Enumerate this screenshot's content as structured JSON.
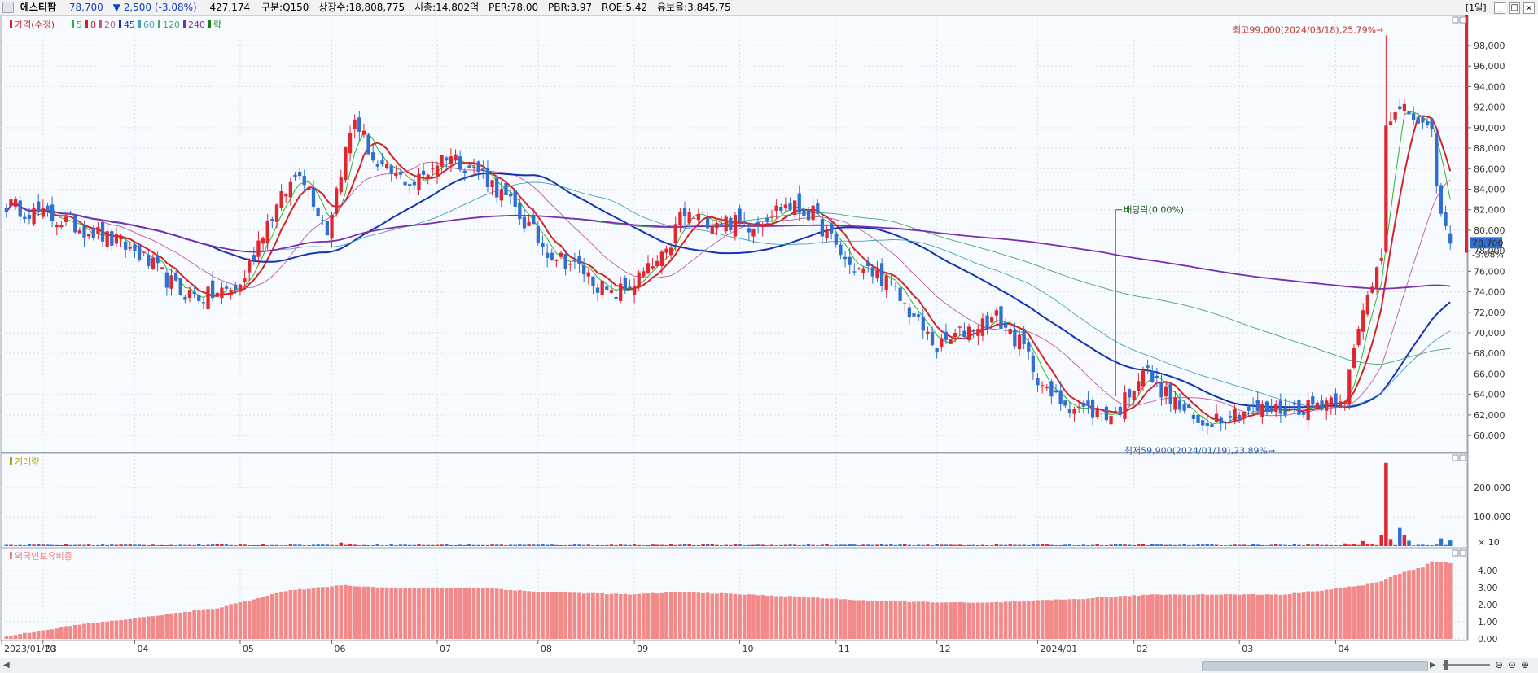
{
  "header": {
    "stock_name": "에스티팜",
    "price": "78,700",
    "change": "▼ 2,500 (-3.08%)",
    "volume": "427,174",
    "market": "구분:Q150",
    "shares": "상장수:18,808,775",
    "market_cap": "시총:14,802억",
    "per": "PER:78.00",
    "pbr": "PBR:3.97",
    "roe": "ROE:5.42",
    "float_ratio": "유보율:3,845.75",
    "period_button": "[1일]",
    "btn_min": "_",
    "btn_max": "□",
    "btn_close": "×"
  },
  "price_legend": [
    {
      "label": "가격(수정)",
      "color": "#d32424"
    },
    {
      "label": "5",
      "color": "#2db42d"
    },
    {
      "label": "8",
      "color": "#d32424"
    },
    {
      "label": "20",
      "color": "#c0579d"
    },
    {
      "label": "45",
      "color": "#1532b0"
    },
    {
      "label": "60",
      "color": "#4aa0b8"
    },
    {
      "label": "120",
      "color": "#4aa46a"
    },
    {
      "label": "240",
      "color": "#7a2fb0"
    },
    {
      "label": "락",
      "color": "#1e7a1e"
    }
  ],
  "volume_legend": {
    "label": "거래량",
    "color": "#a8a800"
  },
  "foreign_legend": {
    "label": "외국인보유비중",
    "color": "#f08080"
  },
  "annotations": {
    "high": "최고99,000(2024/03/18),25.79%→",
    "low": "최저59,900(2024/01/19),23.89%→",
    "dividend": "배당락(0.00%)",
    "last_price_tag": "78,700",
    "last_change_tag": "-3.08%"
  },
  "colors": {
    "up": "#e0262f",
    "down": "#2f6fd0",
    "panel_bg": "#f7fbff"
  },
  "chart_data": [
    {
      "type": "candlestick",
      "title": "",
      "x_tick_labels": [
        "2023/01/20",
        "03",
        "04",
        "05",
        "06",
        "07",
        "08",
        "09",
        "10",
        "11",
        "12",
        "2024/01",
        "02",
        "03",
        "04"
      ],
      "y_tick_labels": [
        "60,000",
        "62,000",
        "64,000",
        "66,000",
        "68,000",
        "70,000",
        "72,000",
        "74,000",
        "76,000",
        "78,000",
        "80,000",
        "82,000",
        "84,000",
        "86,000",
        "88,000",
        "90,000",
        "92,000",
        "94,000",
        "96,000",
        "98,000"
      ],
      "ylim": [
        58500,
        100300
      ],
      "close_anchors": [
        [
          "2023-01-20",
          82500
        ],
        [
          "2023-02-01",
          81500
        ],
        [
          "2023-02-15",
          80000
        ],
        [
          "2023-03-01",
          78000
        ],
        [
          "2023-03-15",
          74000
        ],
        [
          "2023-03-22",
          73500
        ],
        [
          "2023-04-01",
          74500
        ],
        [
          "2023-04-10",
          80000
        ],
        [
          "2023-04-20",
          86000
        ],
        [
          "2023-04-28",
          80000
        ],
        [
          "2023-05-03",
          86000
        ],
        [
          "2023-05-08",
          91000
        ],
        [
          "2023-05-15",
          86000
        ],
        [
          "2023-05-25",
          84500
        ],
        [
          "2023-06-05",
          87500
        ],
        [
          "2023-06-15",
          85500
        ],
        [
          "2023-06-25",
          82000
        ],
        [
          "2023-07-05",
          78000
        ],
        [
          "2023-07-15",
          76000
        ],
        [
          "2023-07-25",
          73500
        ],
        [
          "2023-08-01",
          75000
        ],
        [
          "2023-08-10",
          77500
        ],
        [
          "2023-08-15",
          81500
        ],
        [
          "2023-08-25",
          81000
        ],
        [
          "2023-09-05",
          80500
        ],
        [
          "2023-09-15",
          82500
        ],
        [
          "2023-09-25",
          81500
        ],
        [
          "2023-10-05",
          76500
        ],
        [
          "2023-10-15",
          75500
        ],
        [
          "2023-10-25",
          71500
        ],
        [
          "2023-11-01",
          68500
        ],
        [
          "2023-11-10",
          70500
        ],
        [
          "2023-11-20",
          71500
        ],
        [
          "2023-11-28",
          68500
        ],
        [
          "2023-12-05",
          64000
        ],
        [
          "2023-12-15",
          62500
        ],
        [
          "2023-12-26",
          62000
        ],
        [
          "2024-01-03",
          66500
        ],
        [
          "2024-01-10",
          64000
        ],
        [
          "2024-01-19",
          61000
        ],
        [
          "2024-01-26",
          62000
        ],
        [
          "2024-02-05",
          62500
        ],
        [
          "2024-02-15",
          62500
        ],
        [
          "2024-02-23",
          63000
        ],
        [
          "2024-03-05",
          64000
        ],
        [
          "2024-03-11",
          72000
        ],
        [
          "2024-03-15",
          78000
        ],
        [
          "2024-03-18",
          91000
        ],
        [
          "2024-03-25",
          91500
        ],
        [
          "2024-04-01",
          89000
        ],
        [
          "2024-04-03",
          81200
        ],
        [
          "2024-04-05",
          78700
        ]
      ],
      "high": {
        "date": "2024-03-18",
        "value": 99000
      },
      "low": {
        "date": "2024-01-19",
        "value": 59900
      },
      "last": 78700,
      "series": [
        {
          "name": "5",
          "type": "moving_average",
          "period": 5
        },
        {
          "name": "8",
          "type": "moving_average",
          "period": 8
        },
        {
          "name": "20",
          "type": "moving_average",
          "period": 20
        },
        {
          "name": "45",
          "type": "moving_average",
          "period": 45
        },
        {
          "name": "60",
          "type": "moving_average",
          "period": 60
        },
        {
          "name": "120",
          "type": "moving_average",
          "period": 120
        },
        {
          "name": "240",
          "type": "moving_average",
          "period": 240
        }
      ]
    },
    {
      "type": "bar",
      "title": "",
      "name": "거래량",
      "y_tick_labels": [
        "200,000",
        "100,000"
      ],
      "y_unit": "× 10",
      "ylim": [
        0,
        300000
      ],
      "typical_value": 4000,
      "spikes": [
        [
          "2023-05-03",
          12000
        ],
        [
          "2023-12-26",
          8500
        ],
        [
          "2024-01-03",
          7500
        ],
        [
          "2024-03-05",
          9000
        ],
        [
          "2024-03-11",
          17000
        ],
        [
          "2024-03-15",
          36000
        ],
        [
          "2024-03-18",
          284000
        ],
        [
          "2024-03-19",
          24000
        ],
        [
          "2024-03-21",
          62000
        ],
        [
          "2024-03-22",
          38000
        ],
        [
          "2024-03-25",
          18000
        ],
        [
          "2024-04-03",
          26000
        ],
        [
          "2024-04-05",
          19000
        ]
      ]
    },
    {
      "type": "bar",
      "title": "",
      "name": "외국인보유비중",
      "y_tick_labels": [
        "4.00",
        "3.00",
        "2.00",
        "1.00",
        "0.00"
      ],
      "ylim": [
        0,
        5.0
      ],
      "anchors": [
        [
          "2023-01-20",
          0.15
        ],
        [
          "2023-02-10",
          0.8
        ],
        [
          "2023-03-01",
          1.2
        ],
        [
          "2023-03-25",
          1.8
        ],
        [
          "2023-04-15",
          2.8
        ],
        [
          "2023-05-03",
          3.15
        ],
        [
          "2023-05-20",
          2.95
        ],
        [
          "2023-06-15",
          3.0
        ],
        [
          "2023-07-01",
          2.75
        ],
        [
          "2023-08-01",
          2.6
        ],
        [
          "2023-08-15",
          2.75
        ],
        [
          "2023-09-15",
          2.5
        ],
        [
          "2023-10-15",
          2.2
        ],
        [
          "2023-11-15",
          2.1
        ],
        [
          "2023-12-15",
          2.35
        ],
        [
          "2024-01-05",
          2.6
        ],
        [
          "2024-01-25",
          2.6
        ],
        [
          "2024-02-15",
          2.6
        ],
        [
          "2024-03-08",
          3.1
        ],
        [
          "2024-03-15",
          3.35
        ],
        [
          "2024-03-20",
          3.75
        ],
        [
          "2024-03-28",
          4.2
        ],
        [
          "2024-04-01",
          4.55
        ],
        [
          "2024-04-05",
          4.45
        ]
      ]
    }
  ]
}
